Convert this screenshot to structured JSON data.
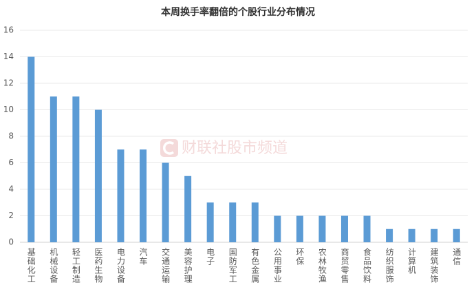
{
  "chart_data": {
    "type": "bar",
    "title": "本周换手率翻倍的个股行业分布情况",
    "watermark": "财联社股市频道",
    "categories": [
      "基础化工",
      "机械设备",
      "轻工制造",
      "医药生物",
      "电力设备",
      "汽车",
      "交通运输",
      "美容护理",
      "电子",
      "国防军工",
      "有色金属",
      "公用事业",
      "环保",
      "农林牧渔",
      "商贸零售",
      "食品饮料",
      "纺织服饰",
      "计算机",
      "建筑装饰",
      "通信"
    ],
    "values": [
      14,
      11,
      11,
      10,
      7,
      7,
      6,
      5,
      3,
      3,
      3,
      2,
      2,
      2,
      2,
      2,
      1,
      1,
      1,
      1
    ],
    "color": "#5b9bd5",
    "ylim": [
      0,
      16
    ],
    "yticks": [
      0,
      2,
      4,
      6,
      8,
      10,
      12,
      14,
      16
    ],
    "grid": true
  }
}
